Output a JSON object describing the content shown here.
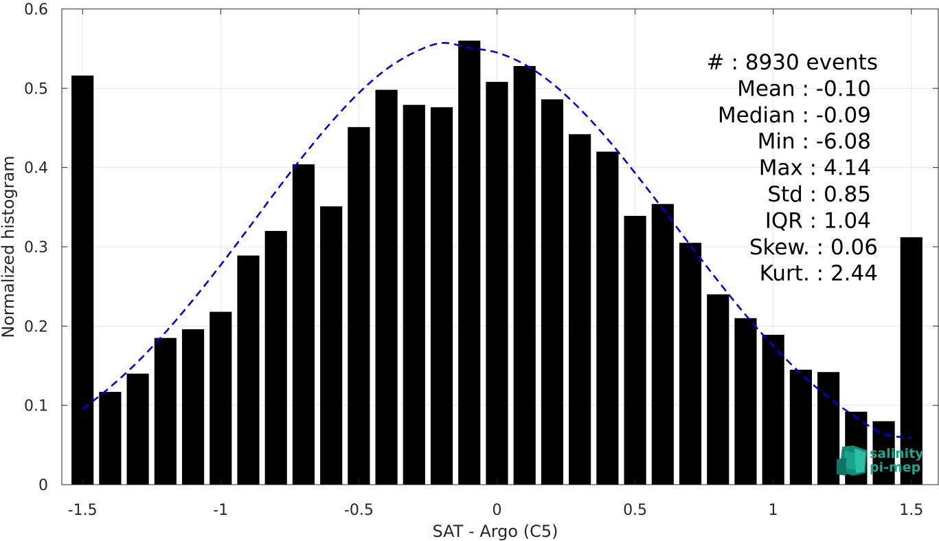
{
  "chart_data": {
    "type": "bar",
    "xlabel": "SAT - Argo (C5)",
    "ylabel": "Normalized histogram",
    "xlim": [
      -1.575,
      1.6
    ],
    "ylim": [
      0,
      0.6
    ],
    "grid": true,
    "x_ticks": [
      -1.5,
      -1,
      -0.5,
      0,
      0.5,
      1,
      1.5
    ],
    "x_tick_labels": [
      "-1.5",
      "-1",
      "-0.5",
      "0",
      "0.5",
      "1",
      "1.5"
    ],
    "y_ticks": [
      0,
      0.1,
      0.2,
      0.3,
      0.4,
      0.5,
      0.6
    ],
    "y_tick_labels": [
      "0",
      "0.1",
      "0.2",
      "0.3",
      "0.4",
      "0.5",
      "0.6"
    ],
    "bar_color": "#000000",
    "fit_color": "#0000e6",
    "x": [
      -1.5,
      -1.4,
      -1.3,
      -1.2,
      -1.1,
      -1.0,
      -0.9,
      -0.8,
      -0.7,
      -0.6,
      -0.5,
      -0.4,
      -0.3,
      -0.2,
      -0.1,
      0.0,
      0.1,
      0.2,
      0.3,
      0.4,
      0.5,
      0.6,
      0.7,
      0.8,
      0.9,
      1.0,
      1.1,
      1.2,
      1.3,
      1.4,
      1.5
    ],
    "values": [
      0.516,
      0.117,
      0.14,
      0.185,
      0.196,
      0.218,
      0.289,
      0.32,
      0.404,
      0.351,
      0.451,
      0.498,
      0.479,
      0.476,
      0.56,
      0.508,
      0.528,
      0.486,
      0.442,
      0.42,
      0.339,
      0.354,
      0.305,
      0.24,
      0.21,
      0.189,
      0.145,
      0.142,
      0.092,
      0.08,
      0.312
    ],
    "series": [
      {
        "style": "dashed-line",
        "x": [
          -1.5,
          -1.4,
          -1.3,
          -1.2,
          -1.1,
          -1.0,
          -0.9,
          -0.8,
          -0.7,
          -0.6,
          -0.5,
          -0.4,
          -0.3,
          -0.2,
          -0.1,
          0.0,
          0.1,
          0.2,
          0.3,
          0.4,
          0.5,
          0.6,
          0.7,
          0.8,
          0.9,
          1.0,
          1.1,
          1.2,
          1.3,
          1.4,
          1.5
        ],
        "values": [
          0.095,
          0.123,
          0.155,
          0.192,
          0.233,
          0.277,
          0.323,
          0.37,
          0.415,
          0.457,
          0.494,
          0.524,
          0.545,
          0.557,
          0.551,
          0.545,
          0.53,
          0.506,
          0.474,
          0.436,
          0.393,
          0.348,
          0.302,
          0.257,
          0.214,
          0.175,
          0.14,
          0.11,
          0.085,
          0.064,
          0.059
        ]
      }
    ],
    "annotations": [
      "#  : 8930 events",
      "Mean : -0.10",
      "Median : -0.09",
      "Min : -6.08",
      "Max : 4.14",
      "Std : 0.85",
      "IQR : 1.04",
      "Skew. : 0.06",
      "Kurt. : 2.44"
    ]
  },
  "logo": {
    "line1": "salinity",
    "line2": "pi-mep",
    "color": "#1aa892"
  }
}
